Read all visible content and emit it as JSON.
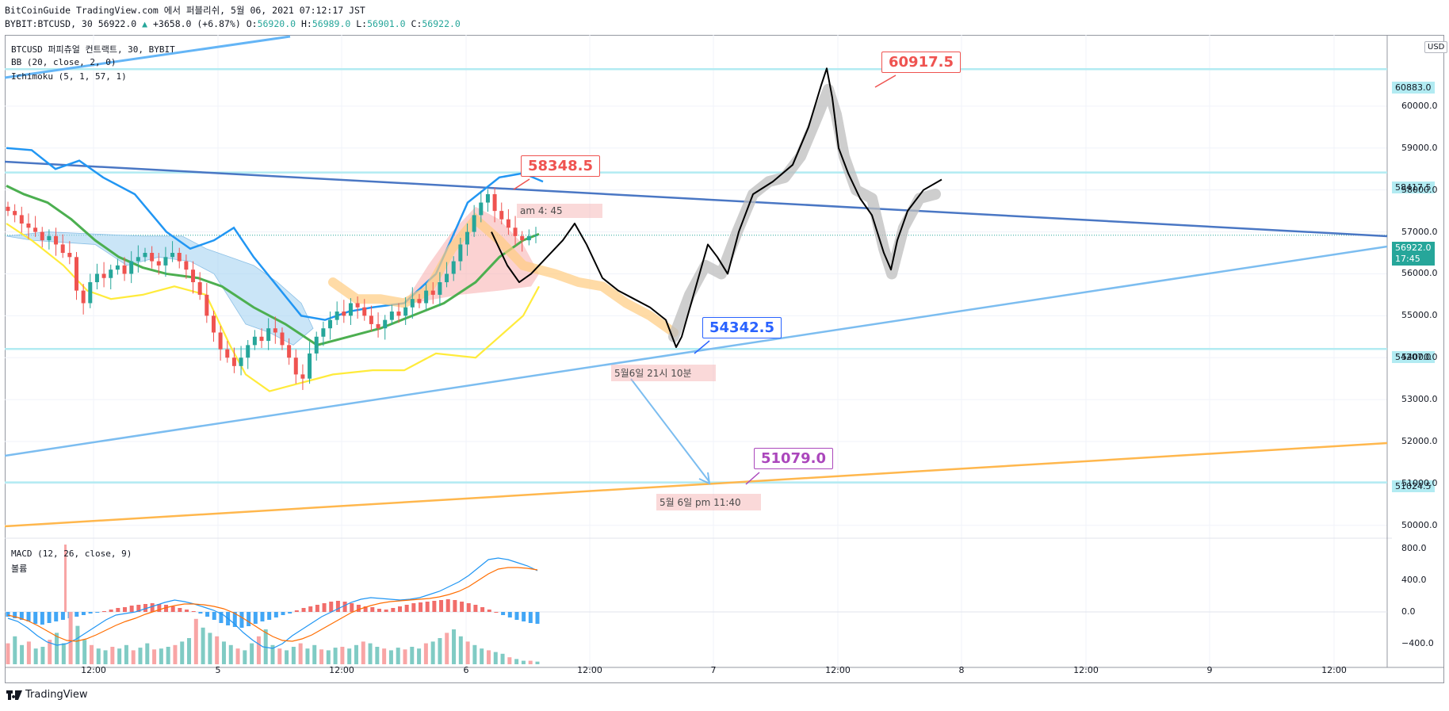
{
  "header": {
    "line1": "BitCoinGuide TradingView.com 에서 퍼블리쉬, 5월 06, 2021 07:12:17 JST",
    "symbol": "BYBIT:BTCUSD, 30",
    "last": "56922.0",
    "change": "+3658.0 (+6.87%)",
    "o_label": "O:",
    "o": "56920.0",
    "h_label": "H:",
    "h": "56989.0",
    "l_label": "L:",
    "l": "56901.0",
    "c_label": "C:",
    "c": "56922.0"
  },
  "legend": {
    "title": "BTCUSD 퍼피츄얼 컨트랙트, 30, BYBIT",
    "bb": "BB (20, close, 2, 0)",
    "ichimoku": "Ichimoku (5, 1, 57, 1)",
    "macd": "MACD (12, 26, close, 9)",
    "volume": "볼륨"
  },
  "currency_badge": "USD",
  "current_price_tag": {
    "price": "56922.0",
    "countdown": "17:45"
  },
  "price_tags": [
    "60883.0",
    "58417.5",
    "54207.0",
    "51024.5"
  ],
  "flags": [
    {
      "label": "60917.5",
      "color": "#ef5350"
    },
    {
      "label": "58348.5",
      "color": "#ef5350"
    },
    {
      "label": "54342.5",
      "color": "#2962ff"
    },
    {
      "label": "51079.0",
      "color": "#ab47bc"
    }
  ],
  "notes": [
    "am 4: 45",
    "5월6일 21시 10분",
    "5월 6일 pm 11:40"
  ],
  "footer": {
    "brand": "TradingView"
  },
  "chart_data": {
    "type": "candlestick",
    "symbol": "BTCUSD",
    "exchange": "BYBIT",
    "interval": "30",
    "x_ticks": [
      "12:00",
      "5",
      "12:00",
      "6",
      "12:00",
      "7",
      "12:00",
      "8",
      "12:00",
      "9",
      "12:00"
    ],
    "y_ticks": [
      "50000.0",
      "51000.0",
      "52000.0",
      "53000.0",
      "54000.0",
      "55000.0",
      "56000.0",
      "57000.0",
      "58000.0",
      "59000.0",
      "60000.0"
    ],
    "ylim": [
      49750,
      61700
    ],
    "macd_y_ticks": [
      "800.0",
      "400.0",
      "0.0",
      "−400.0"
    ],
    "macd_ylim": [
      -700,
      900
    ],
    "horizontal_levels": [
      60883.0,
      58417.5,
      54207.0,
      51024.5
    ],
    "last_price": 56922.0,
    "high_target": 60917.5,
    "resistance_touch": 58348.5,
    "support_touch": 54342.5,
    "low_target": 51079.0,
    "grid": true,
    "accent_colors": {
      "up": "#26a69a",
      "down": "#ef5350",
      "level": "#b2ebf2",
      "ichimoku_cloud": "#9fd0f0"
    }
  }
}
